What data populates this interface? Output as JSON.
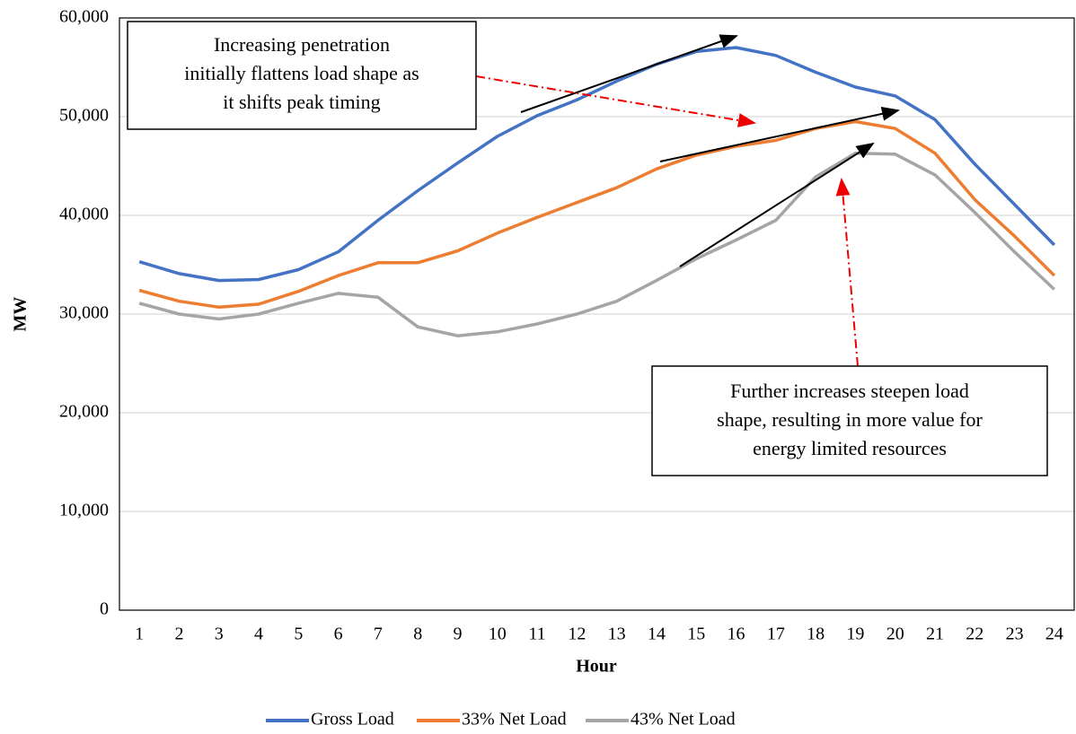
{
  "chart_data": {
    "type": "line",
    "x_label": "Hour",
    "y_label": "MW",
    "categories": [
      "1",
      "2",
      "3",
      "4",
      "5",
      "6",
      "7",
      "8",
      "9",
      "10",
      "11",
      "12",
      "13",
      "14",
      "15",
      "16",
      "17",
      "18",
      "19",
      "20",
      "21",
      "22",
      "23",
      "24"
    ],
    "series": [
      {
        "name": "Gross Load",
        "color": "#4472c4",
        "values": [
          35300,
          34100,
          33400,
          33500,
          34500,
          36300,
          39500,
          42500,
          45300,
          48000,
          50100,
          51700,
          53600,
          55300,
          56600,
          57000,
          56200,
          54500,
          53000,
          52100,
          49700,
          45200,
          41100,
          37000
        ]
      },
      {
        "name": "33% Net Load",
        "color": "#ed7d31",
        "values": [
          32400,
          31300,
          30700,
          31000,
          32300,
          33900,
          35200,
          35200,
          36400,
          38200,
          39800,
          41300,
          42800,
          44700,
          46100,
          47000,
          47600,
          48800,
          49500,
          48800,
          46300,
          41600,
          37900,
          33900
        ]
      },
      {
        "name": "43% Net Load",
        "color": "#a5a5a5",
        "values": [
          31100,
          30000,
          29500,
          30000,
          31100,
          32100,
          31700,
          28700,
          27800,
          28200,
          29000,
          30000,
          31300,
          33400,
          35600,
          37500,
          39500,
          43900,
          46300,
          46200,
          44100,
          40300,
          36300,
          32500
        ]
      }
    ],
    "ylim": [
      0,
      60000
    ],
    "yticks": [
      0,
      {
        "value": 10000,
        "label": "10,000"
      },
      {
        "value": 20000,
        "label": "20,000"
      },
      {
        "value": 30000,
        "label": "30,000"
      },
      {
        "value": 40000,
        "label": "40,000"
      },
      {
        "value": 50000,
        "label": "50,000"
      },
      {
        "value": 60000,
        "label": "60,000"
      }
    ],
    "grid": true,
    "legend": "bottom",
    "annotations": [
      {
        "lines": [
          "Increasing penetration",
          "initially flattens load shape as",
          "it shifts peak timing"
        ]
      },
      {
        "lines": [
          "Further increases steepen load",
          "shape, resulting in more value for",
          "energy limited resources"
        ]
      }
    ]
  }
}
